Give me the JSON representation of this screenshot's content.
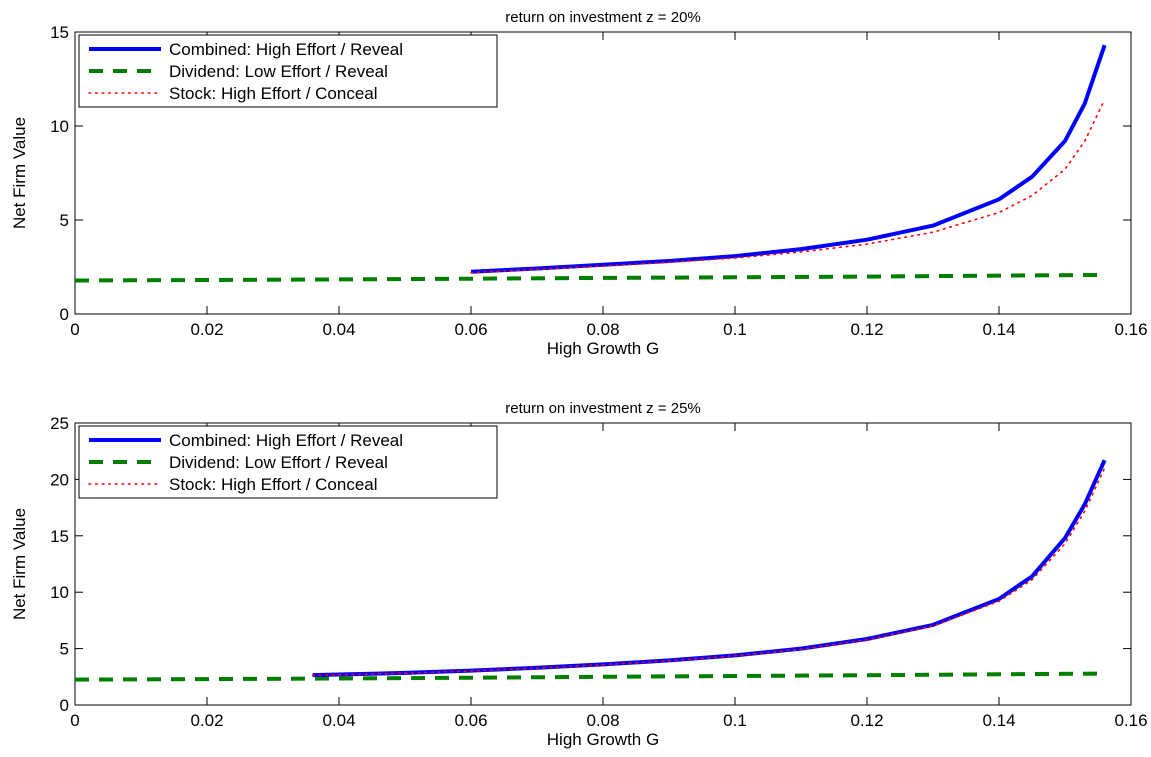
{
  "chart_data": [
    {
      "type": "line",
      "title": "return on investment z = 20%",
      "xlabel": "High Growth G",
      "ylabel": "Net Firm Value",
      "xlim": [
        0,
        0.16
      ],
      "ylim": [
        0,
        15
      ],
      "xticks": [
        0,
        0.02,
        0.04,
        0.06,
        0.08,
        0.1,
        0.12,
        0.14,
        0.16
      ],
      "xtick_labels": [
        "0",
        "0.02",
        "0.04",
        "0.06",
        "0.08",
        "0.1",
        "0.12",
        "0.14",
        "0.16"
      ],
      "yticks": [
        0,
        5,
        10,
        15
      ],
      "ytick_labels": [
        "0",
        "5",
        "10",
        "15"
      ],
      "grid": false,
      "legend_position": "top-left",
      "series": [
        {
          "name": "Combined: High Effort / Reveal",
          "color": "#0000ff",
          "style": "solid",
          "x": [
            0.06,
            0.07,
            0.08,
            0.09,
            0.1,
            0.11,
            0.12,
            0.13,
            0.14,
            0.145,
            0.15,
            0.153,
            0.156
          ],
          "y": [
            2.25,
            2.42,
            2.62,
            2.82,
            3.08,
            3.45,
            3.95,
            4.7,
            6.1,
            7.3,
            9.2,
            11.2,
            14.3
          ]
        },
        {
          "name": "Dividend: Low Effort / Reveal",
          "color": "#007f00",
          "style": "dashed",
          "x": [
            0,
            0.02,
            0.04,
            0.06,
            0.08,
            0.1,
            0.12,
            0.14,
            0.156
          ],
          "y": [
            1.78,
            1.81,
            1.84,
            1.88,
            1.92,
            1.95,
            1.99,
            2.04,
            2.08
          ]
        },
        {
          "name": "Stock: High Effort / Conceal",
          "color": "#ff0000",
          "style": "dotted",
          "x": [
            0.06,
            0.07,
            0.08,
            0.09,
            0.1,
            0.11,
            0.12,
            0.13,
            0.14,
            0.145,
            0.15,
            0.153,
            0.156
          ],
          "y": [
            2.2,
            2.38,
            2.55,
            2.75,
            2.98,
            3.3,
            3.72,
            4.35,
            5.4,
            6.3,
            7.7,
            9.2,
            11.4
          ]
        }
      ]
    },
    {
      "type": "line",
      "title": "return on investment z = 25%",
      "xlabel": "High Growth G",
      "ylabel": "Net Firm Value",
      "xlim": [
        0,
        0.16
      ],
      "ylim": [
        0,
        25
      ],
      "xticks": [
        0,
        0.02,
        0.04,
        0.06,
        0.08,
        0.1,
        0.12,
        0.14,
        0.16
      ],
      "xtick_labels": [
        "0",
        "0.02",
        "0.04",
        "0.06",
        "0.08",
        "0.1",
        "0.12",
        "0.14",
        "0.16"
      ],
      "yticks": [
        0,
        5,
        10,
        15,
        20,
        25
      ],
      "ytick_labels": [
        "0",
        "5",
        "10",
        "15",
        "20",
        "25"
      ],
      "grid": false,
      "legend_position": "top-left",
      "series": [
        {
          "name": "Combined: High Effort / Reveal",
          "color": "#0000ff",
          "style": "solid",
          "x": [
            0.036,
            0.05,
            0.06,
            0.07,
            0.08,
            0.09,
            0.1,
            0.11,
            0.12,
            0.13,
            0.14,
            0.145,
            0.15,
            0.153,
            0.156
          ],
          "y": [
            2.65,
            2.85,
            3.05,
            3.3,
            3.6,
            3.95,
            4.4,
            5.0,
            5.85,
            7.1,
            9.4,
            11.4,
            14.8,
            17.8,
            21.7
          ]
        },
        {
          "name": "Dividend: Low Effort / Reveal",
          "color": "#007f00",
          "style": "dashed",
          "x": [
            0,
            0.02,
            0.04,
            0.06,
            0.08,
            0.1,
            0.12,
            0.14,
            0.156
          ],
          "y": [
            2.25,
            2.3,
            2.35,
            2.42,
            2.5,
            2.57,
            2.64,
            2.72,
            2.78
          ]
        },
        {
          "name": "Stock: High Effort / Conceal",
          "color": "#ff0000",
          "style": "dotted",
          "x": [
            0.036,
            0.05,
            0.06,
            0.07,
            0.08,
            0.09,
            0.1,
            0.11,
            0.12,
            0.13,
            0.14,
            0.145,
            0.15,
            0.153,
            0.156
          ],
          "y": [
            2.62,
            2.82,
            3.02,
            3.27,
            3.57,
            3.92,
            4.36,
            4.95,
            5.78,
            7.0,
            9.2,
            11.1,
            14.3,
            17.2,
            21.0
          ]
        }
      ]
    }
  ]
}
